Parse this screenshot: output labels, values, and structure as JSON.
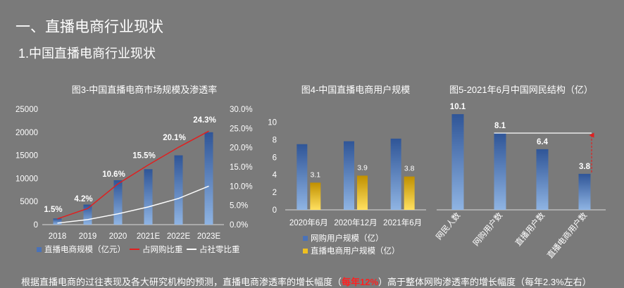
{
  "page": {
    "heading1": "一、直播电商行业现状",
    "heading2": "1.中国直播电商行业现状",
    "bottom_text_before": "根据直播电商的过往表现及各大研究机构的预测，直播电商渗透率的增长幅度（",
    "bottom_text_highlight": "每年12%",
    "bottom_text_after": "）高于整体网购渗透率的增长幅度（每年2.3%左右）"
  },
  "colors": {
    "background": "#7a7a7a",
    "bar_blue_top": "#2f5597",
    "bar_blue_bottom": "#8fb4e3",
    "bar_gold_top": "#c09000",
    "bar_gold_bottom": "#ffe060",
    "line_red": "#e02020",
    "line_white": "#ffffff",
    "axis": "#d9d9d9"
  },
  "chart_data": [
    {
      "type": "bar",
      "title": "图3-中国直播电商市场规模及渗透率",
      "categories": [
        "2018",
        "2019",
        "2020",
        "2021E",
        "2022E",
        "2023E"
      ],
      "series": [
        {
          "name": "直播电商规模（亿元）",
          "kind": "bar",
          "axis": "left",
          "values": [
            1330,
            4338,
            9610,
            12000,
            15000,
            20000
          ]
        },
        {
          "name": "占网购比重",
          "kind": "line",
          "axis": "right",
          "values": [
            1.5,
            4.2,
            10.6,
            15.5,
            20.1,
            24.3
          ],
          "labels": [
            "1.5%",
            "4.2%",
            "10.6%",
            "15.5%",
            "20.1%",
            "24.3%"
          ]
        },
        {
          "name": "占社零比重",
          "kind": "line",
          "axis": "right",
          "values": [
            0.4,
            1.3,
            2.8,
            4.6,
            6.8,
            10.0
          ]
        }
      ],
      "yleft_ticks": [
        "0",
        "5000",
        "10000",
        "15000",
        "20000",
        "25000"
      ],
      "yleft_lim": [
        0,
        25000
      ],
      "yright_ticks": [
        "0.0%",
        "5.0%",
        "10.0%",
        "15.0%",
        "20.0%",
        "25.0%",
        "30.0%"
      ],
      "yright_lim": [
        0,
        30
      ],
      "legend": [
        "直播电商规模（亿元）",
        "占网购比重",
        "占社零比重"
      ]
    },
    {
      "type": "bar",
      "title": "图4-中国直播电商用户规模",
      "categories": [
        "2020年6月",
        "2020年12月",
        "2021年6月"
      ],
      "series": [
        {
          "name": "网购用户规模（亿）",
          "values": [
            7.49,
            7.82,
            8.12
          ]
        },
        {
          "name": "直播电商用户规模（亿）",
          "values": [
            3.1,
            3.9,
            3.8
          ],
          "labels": [
            "3.1",
            "3.9",
            "3.8"
          ]
        }
      ],
      "y_ticks": [
        "0",
        "2",
        "4",
        "6",
        "8",
        "10"
      ],
      "ylim": [
        0,
        11
      ],
      "legend": [
        "网购用户规模（亿）",
        "直播电商用户规模（亿）"
      ]
    },
    {
      "type": "bar",
      "title": "图5-2021年6月中国网民结构（亿）",
      "categories": [
        "网民人数",
        "网购用户数",
        "直播用户数",
        "直播电商用户数"
      ],
      "values": [
        10.1,
        8.1,
        6.4,
        3.8
      ],
      "labels": [
        "10.1",
        "8.1",
        "6.4",
        "3.8"
      ],
      "ylim": [
        0,
        11
      ]
    }
  ]
}
